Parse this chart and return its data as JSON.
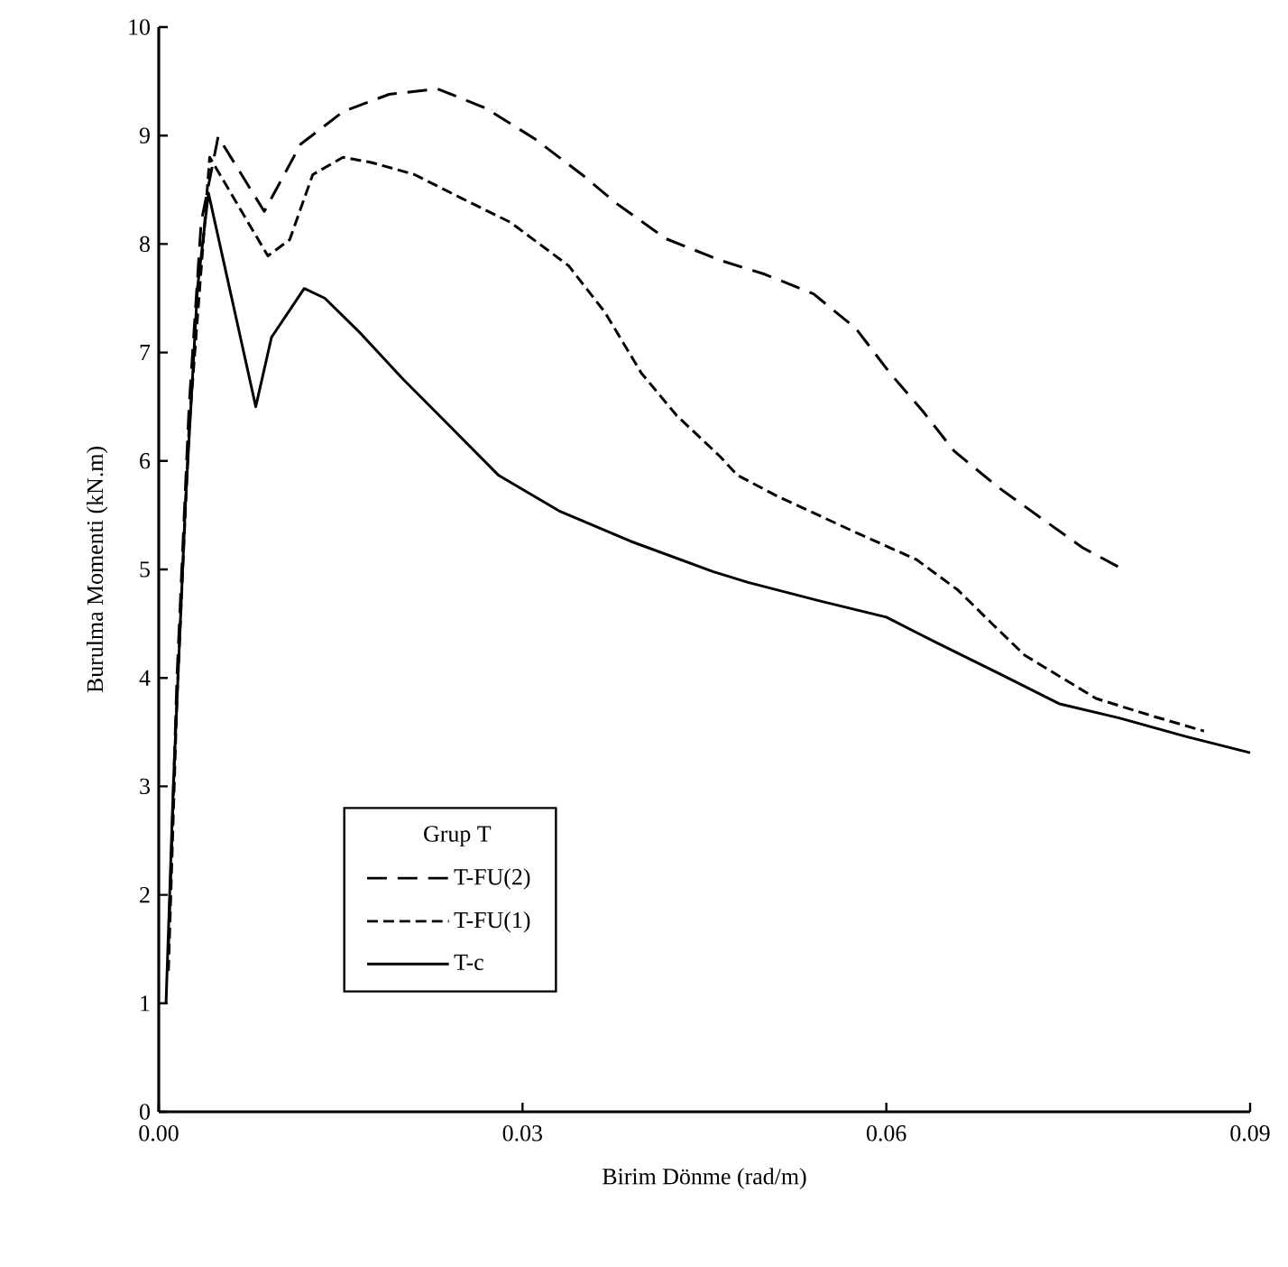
{
  "chart_data": {
    "type": "line",
    "xlabel": "Birim Dönme (rad/m)",
    "ylabel": "Burulma Momenti (kN.m)",
    "legend_title": "Grup T",
    "legend": "bottom left",
    "grid": false,
    "xlim": [
      0,
      0.09
    ],
    "ylim": [
      0,
      10
    ],
    "xticks": [
      {
        "value": 0,
        "label": "0.00"
      },
      {
        "value": 0.03,
        "label": "0.03"
      },
      {
        "value": 0.06,
        "label": "0.06"
      },
      {
        "value": 0.09,
        "label": "0.09"
      }
    ],
    "yticks": [
      0,
      1,
      2,
      3,
      4,
      5,
      6,
      7,
      8,
      9,
      10
    ],
    "series": [
      {
        "name": "T-FU(2)",
        "color": "#000000",
        "line_style": "dashed",
        "x": [
          0.0008,
          0.0015,
          0.0025,
          0.0035,
          0.0049,
          0.0087,
          0.0117,
          0.0152,
          0.019,
          0.023,
          0.027,
          0.031,
          0.0349,
          0.0378,
          0.0418,
          0.0463,
          0.05,
          0.054,
          0.0575,
          0.0603,
          0.063,
          0.0656,
          0.0692,
          0.0728,
          0.0762,
          0.0797
        ],
        "values": [
          1.5,
          4.0,
          6.5,
          8.2,
          8.99,
          8.3,
          8.92,
          9.22,
          9.38,
          9.43,
          9.25,
          8.97,
          8.64,
          8.37,
          8.05,
          7.85,
          7.72,
          7.54,
          7.22,
          6.81,
          6.46,
          6.09,
          5.76,
          5.47,
          5.2,
          4.99
        ]
      },
      {
        "name": "T-FU(1)",
        "color": "#000000",
        "line_style": "dashed",
        "x": [
          0.0008,
          0.0015,
          0.0025,
          0.0042,
          0.009,
          0.0108,
          0.0127,
          0.0152,
          0.0176,
          0.0211,
          0.025,
          0.029,
          0.0338,
          0.0368,
          0.0398,
          0.0427,
          0.0463,
          0.0477,
          0.0511,
          0.0575,
          0.0625,
          0.0659,
          0.0689,
          0.0714,
          0.0773,
          0.0822,
          0.0862
        ],
        "values": [
          1.3,
          3.8,
          6.3,
          8.8,
          7.89,
          8.04,
          8.64,
          8.8,
          8.75,
          8.64,
          8.42,
          8.2,
          7.8,
          7.37,
          6.81,
          6.42,
          6.04,
          5.87,
          5.67,
          5.34,
          5.09,
          4.81,
          4.48,
          4.21,
          3.81,
          3.64,
          3.51
        ]
      },
      {
        "name": "T-c",
        "color": "#000000",
        "line_style": "solid",
        "x": [
          0.0006,
          0.0012,
          0.0022,
          0.0032,
          0.0041,
          0.008,
          0.0093,
          0.012,
          0.0137,
          0.0167,
          0.0201,
          0.0241,
          0.028,
          0.033,
          0.0389,
          0.0457,
          0.0486,
          0.0545,
          0.06,
          0.0644,
          0.0693,
          0.0743,
          0.0792,
          0.0847,
          0.09
        ],
        "values": [
          1.0,
          3.0,
          5.6,
          7.6,
          8.47,
          6.5,
          7.14,
          7.59,
          7.5,
          7.17,
          6.76,
          6.31,
          5.87,
          5.54,
          5.26,
          4.98,
          4.88,
          4.71,
          4.56,
          4.31,
          4.04,
          3.76,
          3.63,
          3.46,
          3.31
        ]
      }
    ]
  }
}
